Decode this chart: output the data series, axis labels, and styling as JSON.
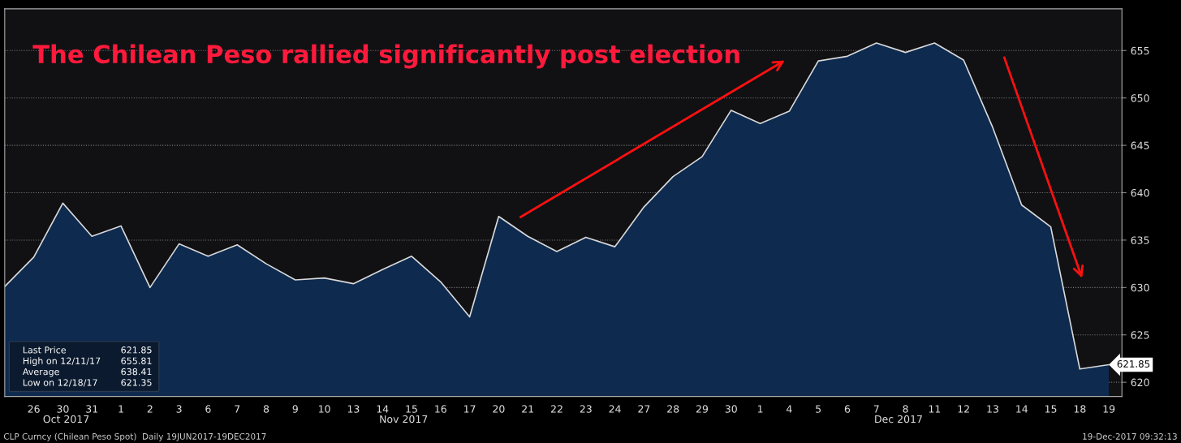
{
  "chart_data": {
    "type": "area",
    "title": "The Chilean Peso rallied significantly post election",
    "categories": [
      null,
      "26",
      "30",
      "31",
      "1",
      "2",
      "3",
      "6",
      "7",
      "8",
      "9",
      "10",
      "13",
      "14",
      "15",
      "16",
      "17",
      "20",
      "21",
      "22",
      "23",
      "24",
      "27",
      "28",
      "29",
      "30",
      "1",
      "4",
      "5",
      "6",
      "7",
      "8",
      "11",
      "12",
      "13",
      "14",
      "15",
      "18",
      "19"
    ],
    "series": [
      {
        "color": "#0e2a4f",
        "values": [
          630.1,
          633.2,
          638.9,
          635.4,
          636.5,
          630.0,
          634.6,
          633.3,
          634.5,
          632.5,
          630.8,
          631.0,
          630.4,
          631.9,
          633.3,
          630.6,
          626.9,
          637.5,
          635.4,
          633.8,
          635.3,
          634.3,
          638.5,
          641.7,
          643.8,
          648.7,
          647.3,
          648.6,
          653.9,
          654.4,
          655.8,
          654.8,
          655.8,
          654.0,
          646.9,
          638.7,
          636.4,
          621.4,
          621.85
        ],
        "value_labels": [
          null,
          null,
          null,
          null,
          null,
          null,
          null,
          null,
          null,
          null,
          null,
          null,
          null,
          null,
          null,
          null,
          null,
          null,
          null,
          null,
          null,
          null,
          null,
          null,
          null,
          null,
          null,
          null,
          null,
          null,
          null,
          null,
          null,
          null,
          null,
          null,
          null,
          null,
          "621.85"
        ]
      }
    ],
    "ylim": [
      618.5,
      659.4
    ],
    "yticks": [
      620,
      625,
      630,
      635,
      640,
      645,
      650,
      655
    ],
    "grid": "y",
    "annotations": [
      "Oct 2017",
      "Nov 2017",
      "Dec 2017",
      "Last Price   621.85",
      "High on 12/11/17   655.81",
      "Average   638.41",
      "Low on 12/18/17   621.35",
      "CLP Curncy (Chilean Peso Spot)  Daily 19JUN2017-19DEC2017",
      "19-Dec-2017 09:32:13"
    ]
  }
}
